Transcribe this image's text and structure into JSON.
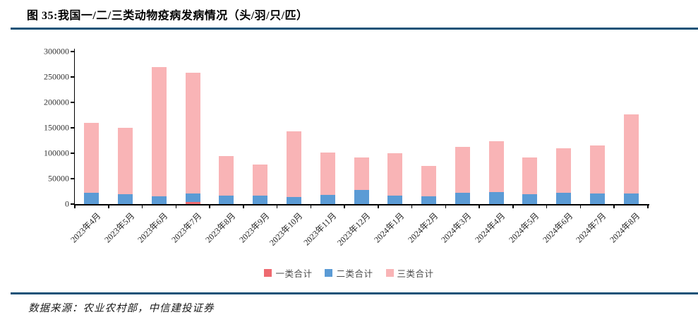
{
  "header": {
    "title": "图 35:我国一/二/三类动物疫病发病情况（头/羽/只/匹）"
  },
  "footer": {
    "source": "数据来源：农业农村部，中信建投证券"
  },
  "colors": {
    "class1": "#ee6a70",
    "class2": "#5b9bd5",
    "class3": "#f9b4b6",
    "rule": "#1a5378",
    "axis": "#000000"
  },
  "chart_data": {
    "type": "bar",
    "stacked": true,
    "title": "图 35:我国一/二/三类动物疫病发病情况（头/羽/只/匹）",
    "xlabel": "",
    "ylabel": "",
    "ylim": [
      0,
      300000
    ],
    "ytick_interval": 50000,
    "ytick_labels": [
      "0",
      "50000",
      "100000",
      "150000",
      "200000",
      "250000",
      "300000"
    ],
    "grid": false,
    "legend_position": "bottom",
    "categories": [
      "2023年4月",
      "2023年5月",
      "2023年6月",
      "2023年7月",
      "2023年8月",
      "2023年9月",
      "2023年10月",
      "2023年11月",
      "2023年12月",
      "2024年1月",
      "2024年2月",
      "2024年3月",
      "2024年4月",
      "2024年5月",
      "2024年6月",
      "2024年7月",
      "2024年8月"
    ],
    "series": [
      {
        "name": "一类合计",
        "color_key": "class1",
        "values": [
          0,
          0,
          0,
          4000,
          0,
          0,
          0,
          0,
          0,
          0,
          0,
          0,
          0,
          0,
          0,
          0,
          0
        ]
      },
      {
        "name": "二类合计",
        "color_key": "class2",
        "values": [
          22000,
          19000,
          15000,
          17000,
          16000,
          17000,
          14000,
          18000,
          28000,
          16000,
          15000,
          22000,
          24000,
          19000,
          22000,
          21000,
          21000
        ]
      },
      {
        "name": "三类合计",
        "color_key": "class3",
        "values": [
          138000,
          131000,
          255000,
          237000,
          79000,
          61000,
          129000,
          84000,
          63000,
          84000,
          60000,
          91000,
          99000,
          72000,
          88000,
          94000,
          156000
        ]
      }
    ]
  }
}
